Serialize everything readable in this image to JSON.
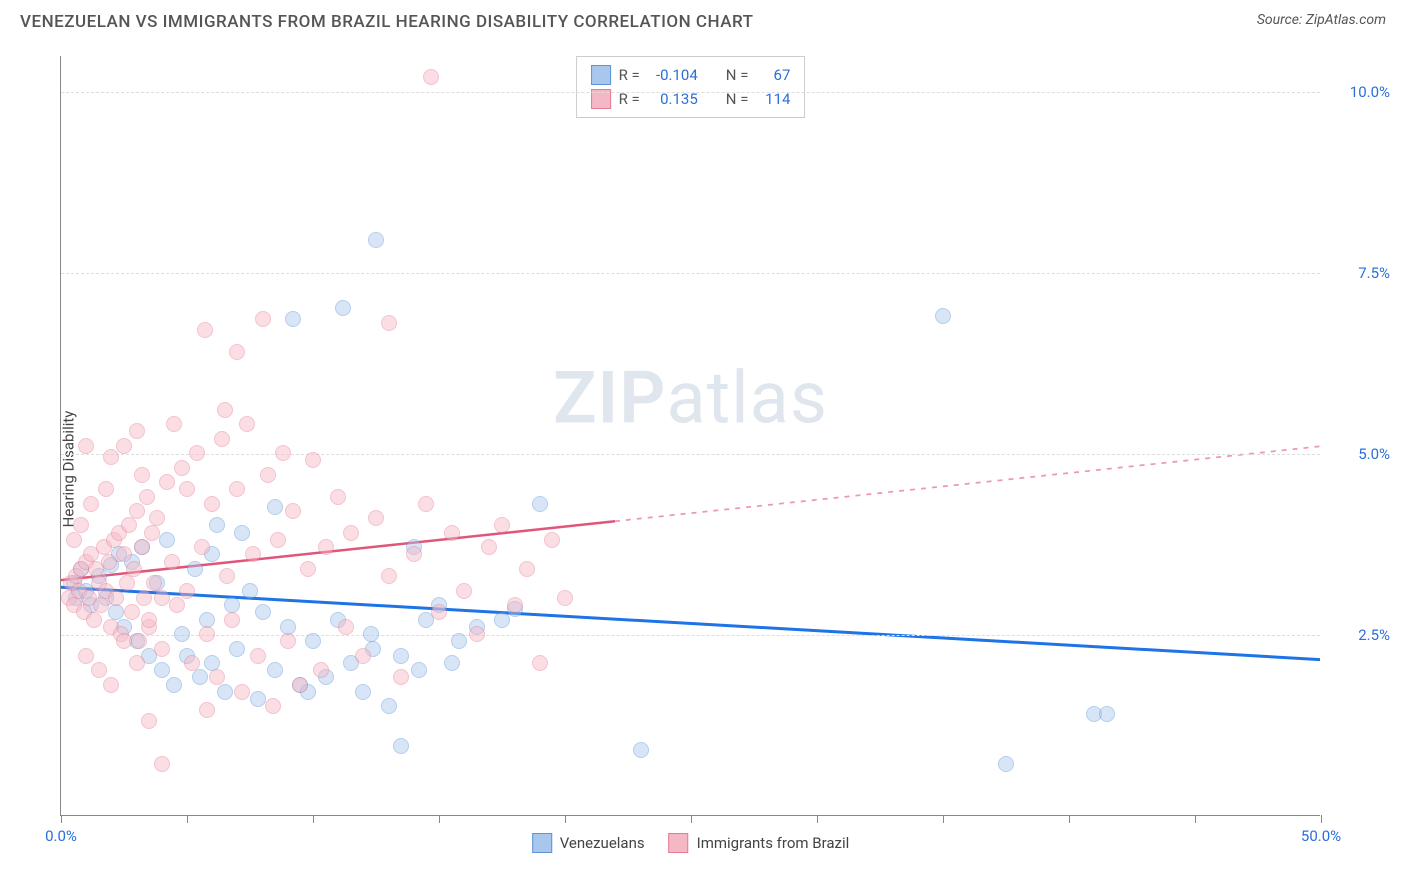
{
  "header": {
    "title": "VENEZUELAN VS IMMIGRANTS FROM BRAZIL HEARING DISABILITY CORRELATION CHART",
    "source_label": "Source:",
    "source_value": "ZipAtlas.com"
  },
  "chart": {
    "type": "scatter",
    "ylabel": "Hearing Disability",
    "watermark_a": "ZIP",
    "watermark_b": "atlas",
    "xlim": [
      0,
      50
    ],
    "ylim": [
      0,
      10.5
    ],
    "x_ticks": [
      0,
      5,
      10,
      15,
      20,
      25,
      30,
      35,
      40,
      45,
      50
    ],
    "x_tick_labels": {
      "0": "0.0%",
      "50": "50.0%"
    },
    "x_tick_label_color": "#2a6fdb",
    "y_gridlines": [
      2.5,
      5.0,
      7.5,
      10.0
    ],
    "y_tick_labels": [
      "2.5%",
      "5.0%",
      "7.5%",
      "10.0%"
    ],
    "y_tick_label_color": "#2a6fdb",
    "grid_color": "#dddddd",
    "axis_color": "#888888",
    "background_color": "#ffffff",
    "marker_radius": 8,
    "marker_opacity": 0.45,
    "series": [
      {
        "name": "Venezuelans",
        "color_fill": "#a9c7ec",
        "color_stroke": "#5b95d6",
        "R": "-0.104",
        "N": "67",
        "trend": {
          "y_at_x0": 3.15,
          "y_at_x50": 2.15,
          "color": "#1e74e6",
          "width": 3,
          "solid_until_x": 50
        },
        "points": [
          [
            0.5,
            3.2
          ],
          [
            0.6,
            3.0
          ],
          [
            0.8,
            3.4
          ],
          [
            1.0,
            3.1
          ],
          [
            1.2,
            2.9
          ],
          [
            1.5,
            3.3
          ],
          [
            1.8,
            3.0
          ],
          [
            2.0,
            3.45
          ],
          [
            2.2,
            2.8
          ],
          [
            2.3,
            3.6
          ],
          [
            2.5,
            2.6
          ],
          [
            2.8,
            3.5
          ],
          [
            3.0,
            2.4
          ],
          [
            3.2,
            3.7
          ],
          [
            3.5,
            2.2
          ],
          [
            3.8,
            3.2
          ],
          [
            4.0,
            2.0
          ],
          [
            4.2,
            3.8
          ],
          [
            4.5,
            1.8
          ],
          [
            4.8,
            2.5
          ],
          [
            5.0,
            2.2
          ],
          [
            5.3,
            3.4
          ],
          [
            5.5,
            1.9
          ],
          [
            5.8,
            2.7
          ],
          [
            6.0,
            2.1
          ],
          [
            6.2,
            4.0
          ],
          [
            6.5,
            1.7
          ],
          [
            6.8,
            2.9
          ],
          [
            7.0,
            2.3
          ],
          [
            7.5,
            3.1
          ],
          [
            7.8,
            1.6
          ],
          [
            8.0,
            2.8
          ],
          [
            8.5,
            2.0
          ],
          [
            9.0,
            2.6
          ],
          [
            9.2,
            6.85
          ],
          [
            9.5,
            1.8
          ],
          [
            10.0,
            2.4
          ],
          [
            10.5,
            1.9
          ],
          [
            11.0,
            2.7
          ],
          [
            11.2,
            7.0
          ],
          [
            11.5,
            2.1
          ],
          [
            12.0,
            1.7
          ],
          [
            12.3,
            2.5
          ],
          [
            12.4,
            2.3
          ],
          [
            12.5,
            7.95
          ],
          [
            13.0,
            1.5
          ],
          [
            13.5,
            2.2
          ],
          [
            14.0,
            3.7
          ],
          [
            14.2,
            2.0
          ],
          [
            14.5,
            2.7
          ],
          [
            15.0,
            2.9
          ],
          [
            15.5,
            2.1
          ],
          [
            15.8,
            2.4
          ],
          [
            16.5,
            2.6
          ],
          [
            17.5,
            2.7
          ],
          [
            18.0,
            2.85
          ],
          [
            19.0,
            4.3
          ],
          [
            23.0,
            0.9
          ],
          [
            35.0,
            6.9
          ],
          [
            37.5,
            0.7
          ],
          [
            41.0,
            1.4
          ],
          [
            41.5,
            1.4
          ],
          [
            13.5,
            0.95
          ],
          [
            9.8,
            1.7
          ],
          [
            8.5,
            4.25
          ],
          [
            7.2,
            3.9
          ],
          [
            6.0,
            3.6
          ]
        ]
      },
      {
        "name": "Immigrants from Brazil",
        "color_fill": "#f4b8c5",
        "color_stroke": "#e77a95",
        "R": "0.135",
        "N": "114",
        "trend": {
          "y_at_x0": 3.25,
          "y_at_x50": 5.1,
          "color": "#e0567b",
          "width": 2.5,
          "solid_until_x": 22
        },
        "points": [
          [
            0.3,
            3.0
          ],
          [
            0.4,
            3.2
          ],
          [
            0.5,
            2.9
          ],
          [
            0.6,
            3.3
          ],
          [
            0.7,
            3.1
          ],
          [
            0.8,
            3.4
          ],
          [
            0.9,
            2.8
          ],
          [
            1.0,
            3.5
          ],
          [
            1.1,
            3.0
          ],
          [
            1.2,
            3.6
          ],
          [
            1.3,
            2.7
          ],
          [
            1.4,
            3.4
          ],
          [
            1.5,
            3.2
          ],
          [
            1.6,
            2.9
          ],
          [
            1.7,
            3.7
          ],
          [
            1.8,
            3.1
          ],
          [
            1.9,
            3.5
          ],
          [
            2.0,
            2.6
          ],
          [
            2.1,
            3.8
          ],
          [
            2.2,
            3.0
          ],
          [
            2.3,
            3.9
          ],
          [
            2.4,
            2.5
          ],
          [
            2.5,
            3.6
          ],
          [
            2.6,
            3.2
          ],
          [
            2.7,
            4.0
          ],
          [
            2.8,
            2.8
          ],
          [
            2.9,
            3.4
          ],
          [
            3.0,
            4.2
          ],
          [
            3.1,
            2.4
          ],
          [
            3.2,
            3.7
          ],
          [
            3.3,
            3.0
          ],
          [
            3.4,
            4.4
          ],
          [
            3.5,
            2.6
          ],
          [
            3.6,
            3.9
          ],
          [
            3.7,
            3.2
          ],
          [
            3.8,
            4.1
          ],
          [
            4.0,
            2.3
          ],
          [
            4.2,
            4.6
          ],
          [
            4.4,
            3.5
          ],
          [
            4.6,
            2.9
          ],
          [
            4.8,
            4.8
          ],
          [
            5.0,
            3.1
          ],
          [
            5.2,
            2.1
          ],
          [
            5.4,
            5.0
          ],
          [
            5.6,
            3.7
          ],
          [
            5.8,
            2.5
          ],
          [
            5.7,
            6.7
          ],
          [
            6.0,
            4.3
          ],
          [
            6.2,
            1.9
          ],
          [
            6.4,
            5.2
          ],
          [
            6.6,
            3.3
          ],
          [
            6.8,
            2.7
          ],
          [
            7.0,
            4.5
          ],
          [
            7.0,
            6.4
          ],
          [
            7.2,
            1.7
          ],
          [
            7.4,
            5.4
          ],
          [
            7.6,
            3.6
          ],
          [
            7.8,
            2.2
          ],
          [
            8.0,
            6.85
          ],
          [
            8.2,
            4.7
          ],
          [
            8.4,
            1.5
          ],
          [
            8.6,
            3.8
          ],
          [
            8.8,
            5.0
          ],
          [
            9.0,
            2.4
          ],
          [
            9.2,
            4.2
          ],
          [
            9.5,
            1.8
          ],
          [
            9.8,
            3.4
          ],
          [
            10.0,
            4.9
          ],
          [
            10.3,
            2.0
          ],
          [
            10.5,
            3.7
          ],
          [
            11.0,
            4.4
          ],
          [
            11.3,
            2.6
          ],
          [
            11.5,
            3.9
          ],
          [
            12.0,
            2.2
          ],
          [
            12.5,
            4.1
          ],
          [
            13.0,
            3.3
          ],
          [
            13.0,
            6.8
          ],
          [
            13.5,
            1.9
          ],
          [
            14.0,
            3.6
          ],
          [
            14.5,
            4.3
          ],
          [
            14.7,
            10.2
          ],
          [
            15.0,
            2.8
          ],
          [
            15.5,
            3.9
          ],
          [
            16.0,
            3.1
          ],
          [
            16.5,
            2.5
          ],
          [
            17.0,
            3.7
          ],
          [
            17.5,
            4.0
          ],
          [
            18.0,
            2.9
          ],
          [
            18.5,
            3.4
          ],
          [
            19.0,
            2.1
          ],
          [
            19.5,
            3.8
          ],
          [
            20.0,
            3.0
          ],
          [
            3.5,
            1.3
          ],
          [
            4.0,
            0.7
          ],
          [
            5.8,
            1.45
          ],
          [
            2.0,
            4.95
          ],
          [
            2.5,
            5.1
          ],
          [
            3.0,
            5.3
          ],
          [
            3.2,
            4.7
          ],
          [
            4.5,
            5.4
          ],
          [
            5.0,
            4.5
          ],
          [
            6.5,
            5.6
          ],
          [
            1.0,
            2.2
          ],
          [
            1.5,
            2.0
          ],
          [
            2.0,
            1.8
          ],
          [
            0.5,
            3.8
          ],
          [
            0.8,
            4.0
          ],
          [
            1.2,
            4.3
          ],
          [
            1.8,
            4.5
          ],
          [
            2.5,
            2.4
          ],
          [
            3.0,
            2.1
          ],
          [
            3.5,
            2.7
          ],
          [
            4.0,
            3.0
          ],
          [
            1.0,
            5.1
          ]
        ]
      }
    ],
    "legend": {
      "items": [
        "Venezuelans",
        "Immigrants from Brazil"
      ]
    }
  }
}
